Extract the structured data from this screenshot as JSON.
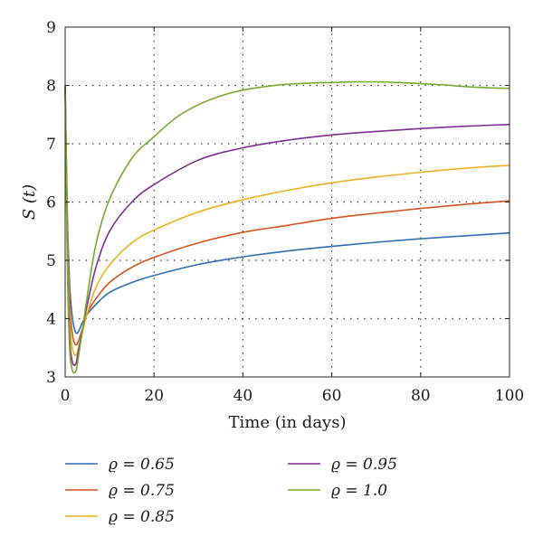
{
  "chart_data": {
    "type": "line",
    "xlabel": "Time (in days)",
    "ylabel": "S (t)",
    "xlim": [
      0,
      100
    ],
    "ylim": [
      3,
      9
    ],
    "xticks": [
      0,
      20,
      40,
      60,
      80,
      100
    ],
    "yticks": [
      3,
      4,
      5,
      6,
      7,
      8,
      9
    ],
    "grid": "dotted",
    "legend_position": "bottom",
    "series": [
      {
        "name": "ϱ = 0.65",
        "color": "#2e6fb4",
        "x": [
          0,
          0.5,
          1,
          1.5,
          2,
          2.5,
          3,
          4,
          5,
          7,
          10,
          15,
          20,
          30,
          40,
          50,
          60,
          70,
          80,
          90,
          100
        ],
        "y": [
          8.0,
          5.8,
          4.6,
          4.1,
          3.85,
          3.75,
          3.78,
          3.95,
          4.08,
          4.25,
          4.45,
          4.62,
          4.74,
          4.93,
          5.06,
          5.16,
          5.24,
          5.31,
          5.37,
          5.42,
          5.47
        ]
      },
      {
        "name": "ϱ = 0.75",
        "color": "#d9531e",
        "x": [
          0,
          0.5,
          1,
          1.5,
          2,
          2.5,
          3,
          4,
          5,
          7,
          10,
          15,
          20,
          30,
          40,
          50,
          60,
          70,
          80,
          90,
          100
        ],
        "y": [
          8.0,
          5.6,
          4.3,
          3.8,
          3.6,
          3.55,
          3.62,
          3.85,
          4.1,
          4.35,
          4.62,
          4.88,
          5.05,
          5.3,
          5.48,
          5.6,
          5.72,
          5.81,
          5.89,
          5.96,
          6.02
        ]
      },
      {
        "name": "ϱ = 0.85",
        "color": "#eeb120",
        "x": [
          0,
          0.5,
          1,
          1.5,
          2,
          2.5,
          3,
          4,
          5,
          7,
          10,
          15,
          20,
          30,
          40,
          50,
          60,
          70,
          80,
          90,
          100
        ],
        "y": [
          8.0,
          5.4,
          4.0,
          3.55,
          3.4,
          3.38,
          3.5,
          3.8,
          4.1,
          4.55,
          4.92,
          5.3,
          5.52,
          5.83,
          6.04,
          6.2,
          6.33,
          6.43,
          6.51,
          6.58,
          6.63
        ]
      },
      {
        "name": "ϱ = 0.95",
        "color": "#7e2f8e",
        "x": [
          0,
          0.5,
          1,
          1.5,
          2,
          2.5,
          3,
          4,
          5,
          7,
          10,
          15,
          20,
          30,
          40,
          50,
          60,
          70,
          80,
          90,
          100
        ],
        "y": [
          8.0,
          5.1,
          3.7,
          3.3,
          3.2,
          3.25,
          3.45,
          3.85,
          4.25,
          4.9,
          5.5,
          6.0,
          6.3,
          6.72,
          6.93,
          7.06,
          7.15,
          7.21,
          7.26,
          7.3,
          7.33
        ]
      },
      {
        "name": "ϱ = 1.0",
        "color": "#77ac30",
        "x": [
          0,
          0.5,
          1,
          1.5,
          2,
          2.5,
          3,
          4,
          5,
          7,
          10,
          15,
          20,
          25,
          30,
          35,
          40,
          45,
          50,
          55,
          60,
          65,
          70,
          75,
          80,
          85,
          90,
          95,
          100
        ],
        "y": [
          8.0,
          4.9,
          3.5,
          3.15,
          3.07,
          3.12,
          3.35,
          3.85,
          4.4,
          5.3,
          6.05,
          6.75,
          7.12,
          7.45,
          7.67,
          7.82,
          7.92,
          7.98,
          8.02,
          8.04,
          8.05,
          8.06,
          8.06,
          8.05,
          8.03,
          8.01,
          7.98,
          7.96,
          7.95
        ]
      }
    ]
  }
}
